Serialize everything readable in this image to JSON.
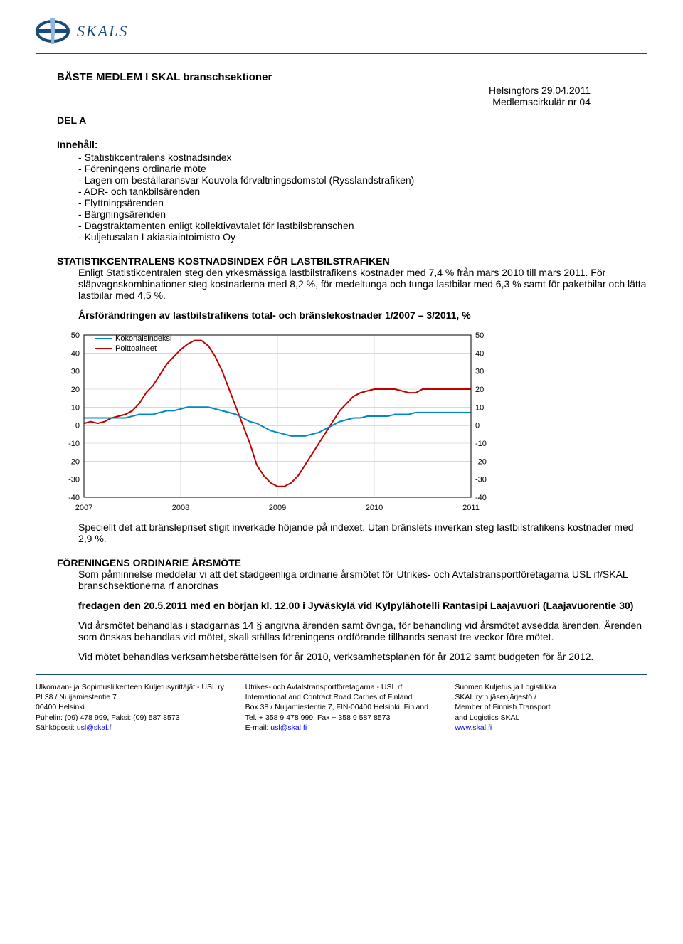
{
  "header": {
    "logo_text": "SKALS"
  },
  "title": "BÄSTE MEDLEM I SKAL branschsektioner",
  "location_date": "Helsingfors 29.04.2011",
  "circular": "Medlemscirkulär nr 04",
  "part": "DEL A",
  "toc": {
    "heading": "Innehåll:",
    "items": [
      "Statistikcentralens kostnadsindex",
      "Föreningens ordinarie möte",
      "Lagen om beställaransvar Kouvola förvaltningsdomstol (Rysslandstrafiken)",
      "ADR- och tankbilsärenden",
      "Flyttningsärenden",
      "Bärgningsärenden",
      "Dagstraktamenten enligt kollektivavtalet för lastbilsbranschen",
      "Kuljetusalan Lakiasiaintoimisto Oy"
    ]
  },
  "section_stats": {
    "heading": "STATISTIKCENTRALENS KOSTNADSINDEX FÖR LASTBILSTRAFIKEN",
    "p1": "Enligt Statistikcentralen steg den yrkesmässiga lastbilstrafikens kostnader med 7,4 % från mars 2010 till mars 2011. För släpvagnskombinationer steg kostnaderna med 8,2 %, för medeltunga och tunga lastbilar med 6,3 % samt för paketbilar och lätta lastbilar med 4,5 %.",
    "chart_title": "Årsförändringen av lastbilstrafikens total- och bränslekostnader 1/2007 – 3/2011, %",
    "p2": "Speciellt det att bränslepriset stigit inverkade höjande på indexet. Utan bränslets inverkan steg lastbilstrafikens kostnader med 2,9 %."
  },
  "chart": {
    "type": "line",
    "background_color": "#ffffff",
    "grid_color": "#c0c0c0",
    "axis_color": "#000000",
    "ylim": [
      -40,
      50
    ],
    "yticks": [
      -40,
      -30,
      -20,
      -10,
      0,
      10,
      20,
      30,
      40,
      50
    ],
    "xticks": [
      "2007",
      "2008",
      "2009",
      "2010",
      "2011"
    ],
    "legend": {
      "series1": {
        "label": "Kokonaisindeksi",
        "color": "#008ac5",
        "width": 2
      },
      "series2": {
        "label": "Polttoaineet",
        "color": "#c00000",
        "width": 2
      }
    },
    "series_kokonaisindeksi_values": [
      4,
      4,
      4,
      4,
      4,
      4,
      4,
      5,
      6,
      6,
      6,
      7,
      8,
      8,
      9,
      10,
      10,
      10,
      10,
      9,
      8,
      7,
      6,
      4,
      2,
      1,
      -1,
      -3,
      -4,
      -5,
      -6,
      -6,
      -6,
      -5,
      -4,
      -2,
      0,
      2,
      3,
      4,
      4,
      5,
      5,
      5,
      5,
      6,
      6,
      6,
      7,
      7,
      7,
      7,
      7,
      7,
      7,
      7,
      7
    ],
    "series_polttoaineet_values": [
      1,
      2,
      1,
      2,
      4,
      5,
      6,
      8,
      12,
      18,
      22,
      28,
      34,
      38,
      42,
      45,
      47,
      47,
      44,
      38,
      30,
      20,
      10,
      0,
      -10,
      -22,
      -28,
      -32,
      -34,
      -34,
      -32,
      -28,
      -22,
      -16,
      -10,
      -4,
      2,
      8,
      12,
      16,
      18,
      19,
      20,
      20,
      20,
      20,
      19,
      18,
      18,
      20,
      20,
      20,
      20,
      20,
      20,
      20,
      20
    ]
  },
  "section_meeting": {
    "heading": "FÖRENINGENS ORDINARIE ÅRSMÖTE",
    "p1": "Som påminnelse meddelar vi att det stadgeenliga ordinarie årsmötet för Utrikes- och Avtalstransportföretagarna USL rf/SKAL branschsektionerna rf anordnas",
    "p2_strong": "fredagen den 20.5.2011 med en början kl. 12.00 i Jyväskylä vid Kylpylähotelli Rantasipi Laajavuori (Laajavuorentie 30)",
    "p3": "Vid årsmötet behandlas i stadgarnas 14 § angivna ärenden samt övriga, för behandling vid årsmötet avsedda ärenden. Ärenden som önskas behandlas vid mötet, skall ställas föreningens ordförande tillhands senast tre veckor före mötet.",
    "p4": "Vid mötet behandlas verksamhetsberättelsen för år 2010, verksamhetsplanen för år 2012 samt budgeten för år 2012."
  },
  "footer": {
    "col1": [
      "Ulkomaan- ja Sopimusliikenteen Kuljetusyrittäjät - USL ry",
      "PL38 / Nuijamiestentie 7",
      "00400 Helsinki",
      "Puhelin: (09) 478 999, Faksi: (09) 587 8573",
      "Sähköposti: usl@skal.fi"
    ],
    "col2": [
      "Utrikes- och Avtalstransportföretagarna - USL rf",
      "International and Contract Road Carries of Finland",
      "Box 38 / Nuijamiestentie 7, FIN-00400 Helsinki, Finland",
      "Tel. + 358 9 478 999, Fax + 358 9 587 8573",
      "E-mail: usl@skal.fi"
    ],
    "col3": [
      "Suomen Kuljetus ja Logistiikka",
      "SKAL ry:n jäsenjärjestö /",
      "Member of Finnish Transport",
      "and Logistics SKAL",
      "www.skal.fi"
    ],
    "email1": "usl@skal.fi",
    "email2": "usl@skal.fi",
    "url": "www.skal.fi"
  }
}
